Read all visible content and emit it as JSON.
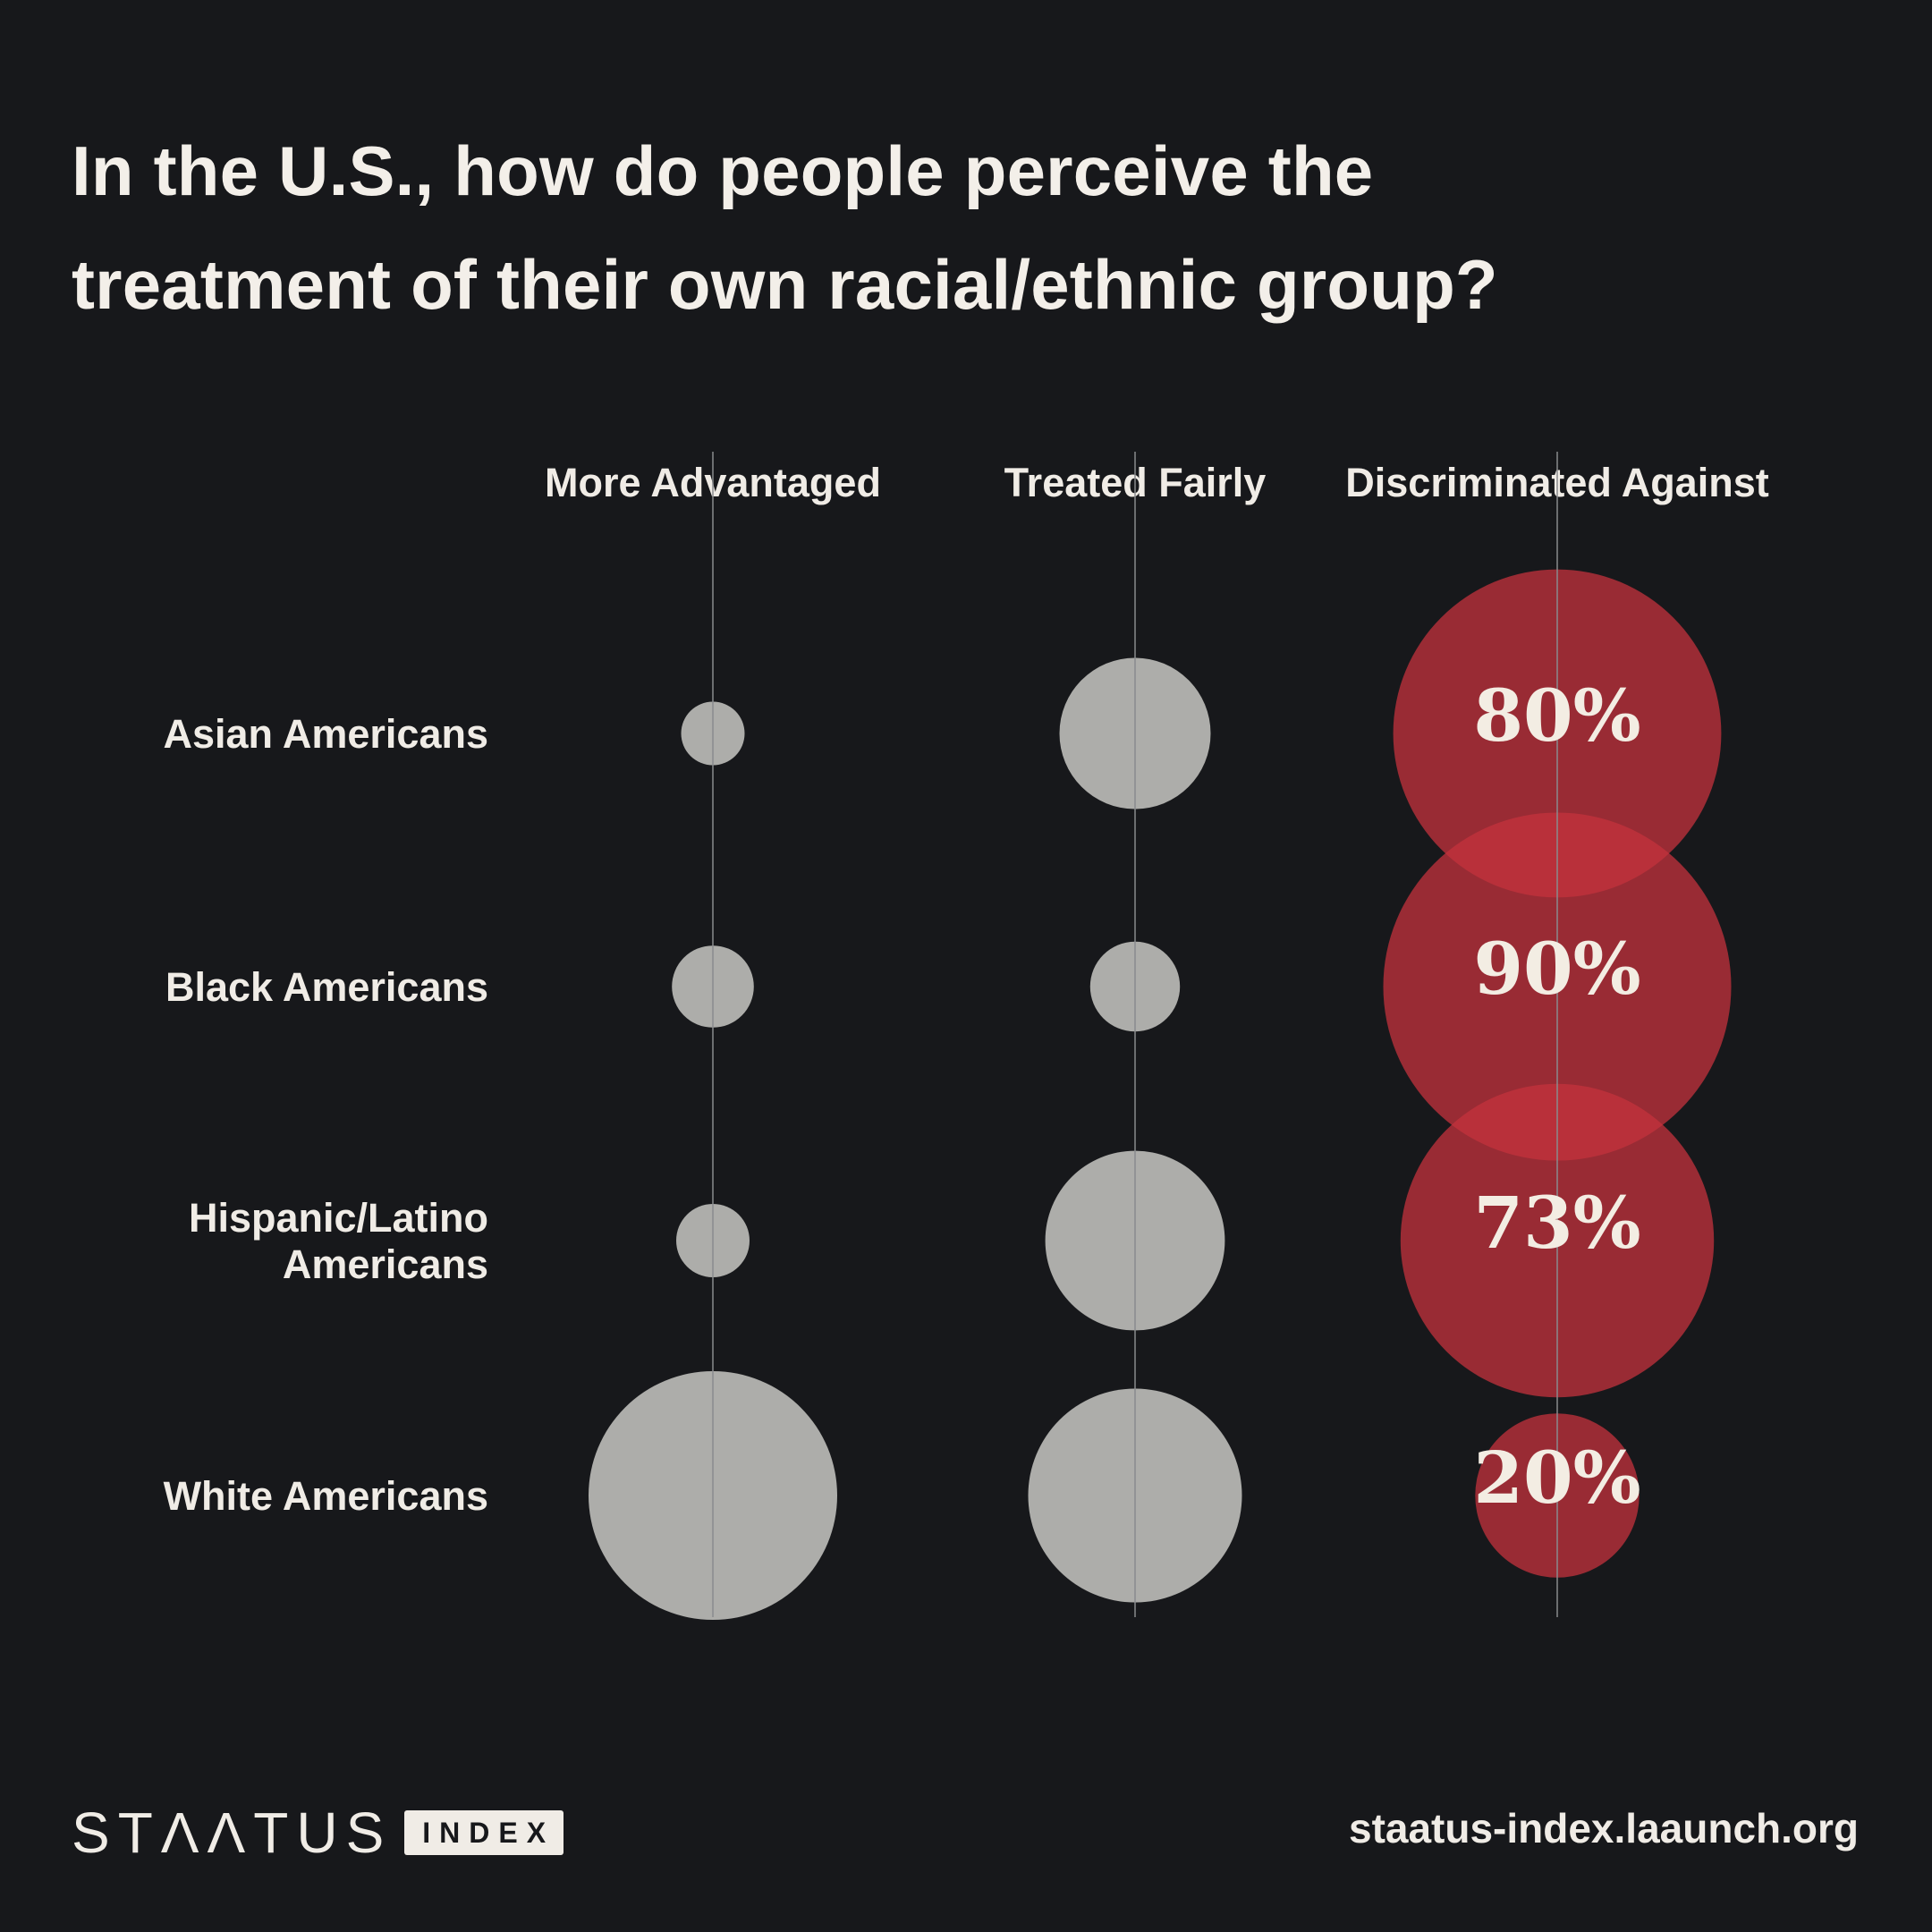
{
  "title": "In the U.S., how do people perceive the treatment of their own racial/ethnic group?",
  "footer": {
    "logo_word": "STΛΛTUS",
    "logo_badge": "INDEX",
    "url": "staatus-index.laaunch.org"
  },
  "colors": {
    "background": "#17181b",
    "neutral_bubble": "#adadaa",
    "highlight_bubble": "#c2323d",
    "text": "#f0ece6"
  },
  "chart_data": {
    "type": "bubble-matrix",
    "columns": [
      "More Advantaged",
      "Treated Fairly",
      "Discriminated Against"
    ],
    "rows": [
      {
        "label": [
          "Asian Americans"
        ],
        "values": [
          3,
          17,
          80
        ],
        "highlight_label": "80%"
      },
      {
        "label": [
          "Black Americans"
        ],
        "values": [
          5,
          6,
          90
        ],
        "highlight_label": "90%"
      },
      {
        "label": [
          "Hispanic/Latino",
          "Americans"
        ],
        "values": [
          4,
          24,
          73
        ],
        "highlight_label": "73%"
      },
      {
        "label": [
          "White Americans"
        ],
        "values": [
          46,
          34,
          20
        ],
        "highlight_label": "20%"
      }
    ],
    "highlight_column": 2
  }
}
